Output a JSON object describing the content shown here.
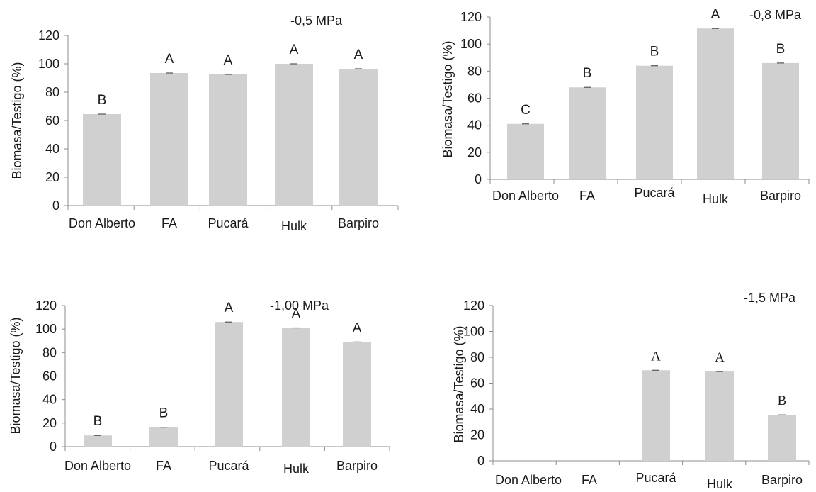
{
  "chart_data": [
    {
      "type": "bar",
      "title": "-0,5 MPa",
      "ylabel": "Biomasa/Testigo (%)",
      "xlabel": "",
      "ylim": [
        0,
        120
      ],
      "yticks": [
        "0",
        "20",
        "40",
        "60",
        "80",
        "100",
        "120"
      ],
      "categories": [
        "Don Alberto",
        "FA",
        "Pucará",
        "Hulk",
        "Barpiro"
      ],
      "values": [
        64.5,
        93.5,
        92.5,
        100,
        96.5
      ],
      "letters": [
        "B",
        "A",
        "A",
        "A",
        "A"
      ],
      "bar_color": "#d0d0d0"
    },
    {
      "type": "bar",
      "title": "-0,8 MPa",
      "ylabel": "Biomasa/Testigo (%)",
      "xlabel": "",
      "ylim": [
        0,
        120
      ],
      "yticks": [
        "0",
        "20",
        "40",
        "60",
        "80",
        "100",
        "120"
      ],
      "categories": [
        "Don Alberto",
        "FA",
        "Pucará",
        "Hulk",
        "Barpiro"
      ],
      "values": [
        41,
        68,
        84,
        111.5,
        86
      ],
      "letters": [
        "C",
        "B",
        "B",
        "A",
        "B"
      ],
      "bar_color": "#d0d0d0"
    },
    {
      "type": "bar",
      "title": "-1,00 MPa",
      "ylabel": "Biomasa/Testigo (%)",
      "xlabel": "",
      "ylim": [
        0,
        120
      ],
      "yticks": [
        "0",
        "20",
        "40",
        "60",
        "80",
        "100",
        "120"
      ],
      "categories": [
        "Don Alberto",
        "FA",
        "Pucará",
        "Hulk",
        "Barpiro"
      ],
      "values": [
        9.5,
        16.5,
        106,
        101,
        89
      ],
      "letters": [
        "B",
        "B",
        "A",
        "A",
        "A"
      ],
      "bar_color": "#d0d0d0"
    },
    {
      "type": "bar",
      "title": "-1,5 MPa",
      "ylabel": "Biomasa/Testigo (%)",
      "xlabel": "",
      "ylim": [
        0,
        120
      ],
      "yticks": [
        "0",
        "20",
        "40",
        "60",
        "80",
        "100",
        "120"
      ],
      "categories": [
        "Don Alberto",
        "FA",
        "Pucará",
        "Hulk",
        "Barpiro"
      ],
      "values": [
        0,
        0,
        70,
        69,
        35.5
      ],
      "letters": [
        "",
        "",
        "A",
        "A",
        "B"
      ],
      "bar_color": "#d0d0d0"
    }
  ]
}
